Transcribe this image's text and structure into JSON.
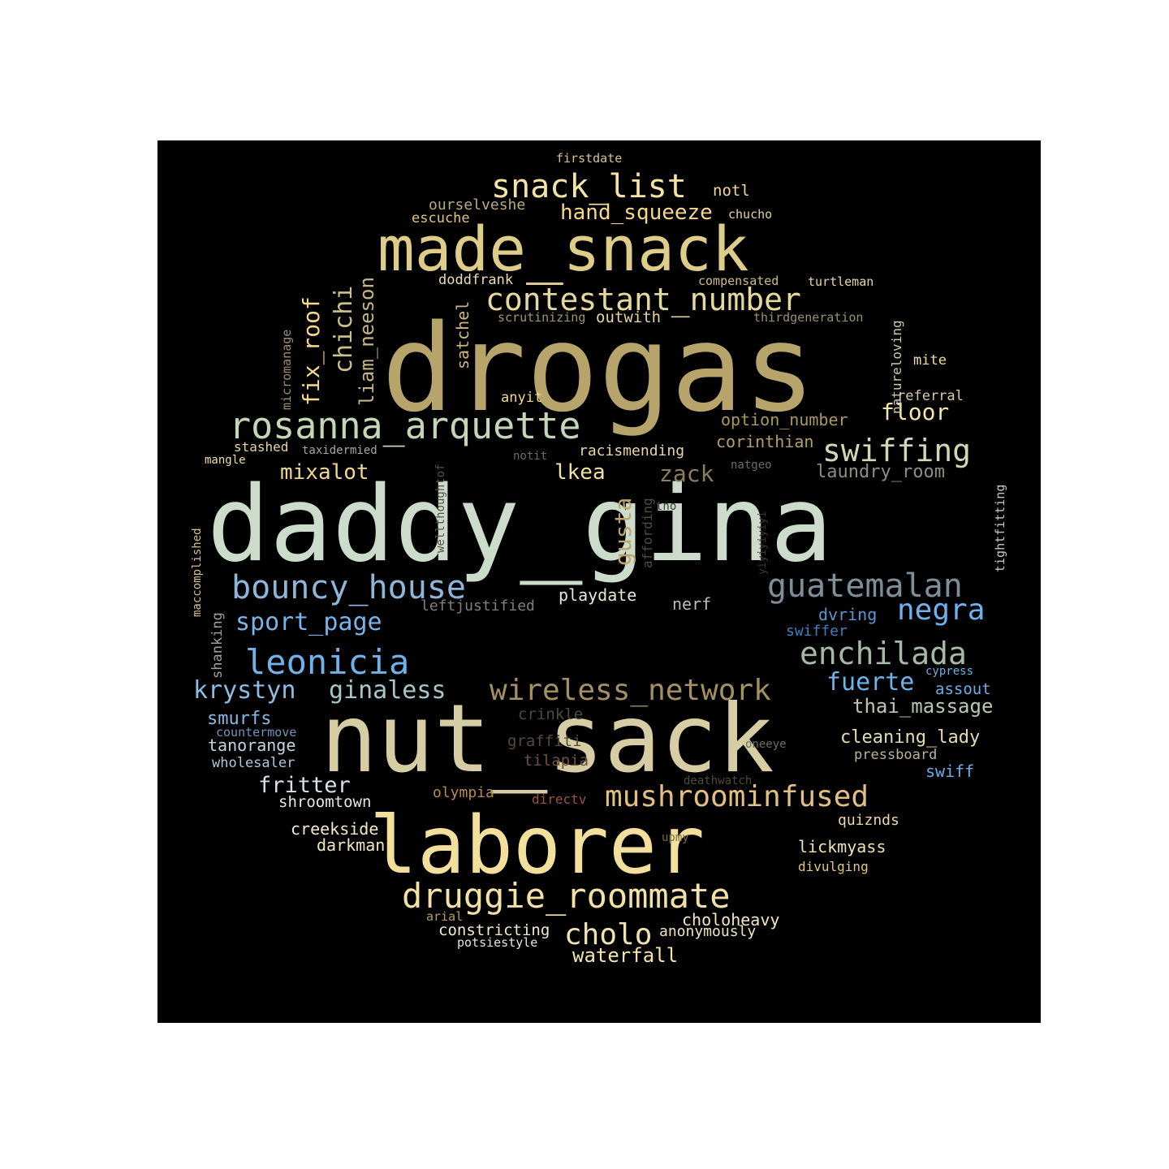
{
  "words": [
    {
      "text": "drogas",
      "color": "#b6a46a"
    },
    {
      "text": "daddy_gina",
      "color": "#ccdccb"
    },
    {
      "text": "nut_sack",
      "color": "#d6cda4"
    },
    {
      "text": "laborer",
      "color": "#f3df9c"
    },
    {
      "text": "made_snack",
      "color": "#ddcd88"
    },
    {
      "text": "rosanna_arquette",
      "color": "#c3d6b6"
    },
    {
      "text": "contestant_number",
      "color": "#e6d99e"
    },
    {
      "text": "snack_list",
      "color": "#f4e3a6"
    },
    {
      "text": "bouncy_house",
      "color": "#8fb6da"
    },
    {
      "text": "guatemalan",
      "color": "#7d8f99"
    },
    {
      "text": "druggie_roommate",
      "color": "#f3e1a6"
    },
    {
      "text": "mushroominfused",
      "color": "#e2bf82"
    },
    {
      "text": "wireless_network",
      "color": "#a59061"
    },
    {
      "text": "swiffing",
      "color": "#d4d6b4"
    },
    {
      "text": "enchilada",
      "color": "#a6b9a6"
    },
    {
      "text": "leonicia",
      "color": "#6fb2e9"
    },
    {
      "text": "negra",
      "color": "#6eb1ec"
    },
    {
      "text": "cholo",
      "color": "#f1e2b6"
    },
    {
      "text": "chichi",
      "color": "#ccc08b"
    },
    {
      "text": "liam_neeson",
      "color": "#c7b584"
    },
    {
      "text": "fix_roof",
      "color": "#f6d98a"
    },
    {
      "text": "hand_squeeze",
      "color": "#f5d88b"
    },
    {
      "text": "sport_page",
      "color": "#77b4ea"
    },
    {
      "text": "krystyn",
      "color": "#8cbde0"
    },
    {
      "text": "ginaless",
      "color": "#a6c6c8"
    },
    {
      "text": "fuerte",
      "color": "#6fb3ea"
    },
    {
      "text": "thai_massage",
      "color": "#b8c8b4"
    },
    {
      "text": "mixalot",
      "color": "#f0d88e"
    },
    {
      "text": "lkea",
      "color": "#f1e0a6"
    },
    {
      "text": "zack",
      "color": "#8d7e5b"
    },
    {
      "text": "gusta",
      "color": "#bfa46b"
    },
    {
      "text": "floor",
      "color": "#f3e4b2"
    },
    {
      "text": "fritter",
      "color": "#d6e0e8"
    },
    {
      "text": "waterfall",
      "color": "#f3e4ae"
    },
    {
      "text": "cleaning_lady",
      "color": "#e3ddb2"
    },
    {
      "text": "laundry_room",
      "color": "#8a8f82"
    },
    {
      "text": "satchel",
      "color": "#cab680"
    },
    {
      "text": "smurfs",
      "color": "#89b6e4"
    },
    {
      "text": "tanorange",
      "color": "#c4d5e2"
    },
    {
      "text": "creekside",
      "color": "#f3eac8"
    },
    {
      "text": "darkman",
      "color": "#f3e6bb"
    },
    {
      "text": "shroomtown",
      "color": "#e6e6e6"
    },
    {
      "text": "option_number",
      "color": "#a9985e"
    },
    {
      "text": "corinthian",
      "color": "#b29f70"
    },
    {
      "text": "outwith",
      "color": "#e8d5a0"
    },
    {
      "text": "playdate",
      "color": "#e9e6d2"
    },
    {
      "text": "nerf",
      "color": "#bcbcbc"
    },
    {
      "text": "dvring",
      "color": "#5b96d0"
    },
    {
      "text": "swiffer",
      "color": "#3f7fc0"
    },
    {
      "text": "swiff",
      "color": "#6aaee7"
    },
    {
      "text": "assout",
      "color": "#6aaee7"
    },
    {
      "text": "lickmyass",
      "color": "#f0e1b0"
    },
    {
      "text": "choloheavy",
      "color": "#f3e7c2"
    },
    {
      "text": "anonymously",
      "color": "#efe5c3"
    },
    {
      "text": "constricting",
      "color": "#f1ebcf"
    },
    {
      "text": "crinkle",
      "color": "#4f4a3e"
    },
    {
      "text": "graffiti",
      "color": "#574a3b"
    },
    {
      "text": "tilapia",
      "color": "#6e4f3f"
    },
    {
      "text": "olympia",
      "color": "#b58b52"
    },
    {
      "text": "directv",
      "color": "#a05040"
    },
    {
      "text": "pressboard",
      "color": "#b9b39e"
    },
    {
      "text": "quiznds",
      "color": "#e9d8a3"
    },
    {
      "text": "divulging",
      "color": "#e0c67f"
    },
    {
      "text": "racismending",
      "color": "#ecd7a3"
    },
    {
      "text": "leftjustified",
      "color": "#7f7f7f"
    },
    {
      "text": "wholesaler",
      "color": "#aec6e0"
    },
    {
      "text": "countermove",
      "color": "#6f95bd"
    },
    {
      "text": "shanking",
      "color": "#a0a0a0"
    },
    {
      "text": "maccomplished",
      "color": "#d6c08c"
    },
    {
      "text": "micromanage",
      "color": "#9e8d6c"
    },
    {
      "text": "stashed",
      "color": "#e8d69e"
    },
    {
      "text": "taxidermied",
      "color": "#a6a6a6"
    },
    {
      "text": "mangle",
      "color": "#f2dfa3"
    },
    {
      "text": "wellthoughtof",
      "color": "#5b5040"
    },
    {
      "text": "affording",
      "color": "#554b3c"
    },
    {
      "text": "tno",
      "color": "#3e3e3e"
    },
    {
      "text": "yiyiyiyiyi",
      "color": "#3a3a35"
    },
    {
      "text": "natgeo",
      "color": "#6c6c6c"
    },
    {
      "text": "notit",
      "color": "#6c6c60"
    },
    {
      "text": "anyit",
      "color": "#f3d98e"
    },
    {
      "text": "referral",
      "color": "#d8cba8"
    },
    {
      "text": "mite",
      "color": "#f3dca3"
    },
    {
      "text": "natureloving",
      "color": "#d1c8a6"
    },
    {
      "text": "tightfitting",
      "color": "#c8c8b8"
    },
    {
      "text": "doddfrank",
      "color": "#f0dcae"
    },
    {
      "text": "compensated",
      "color": "#cdbb86"
    },
    {
      "text": "turtleman",
      "color": "#e8d6a3"
    },
    {
      "text": "scrutinizing",
      "color": "#a39471"
    },
    {
      "text": "thirdgeneration",
      "color": "#9c8e6a"
    },
    {
      "text": "ourselveshe",
      "color": "#b9aa80"
    },
    {
      "text": "escuche",
      "color": "#e0c580"
    },
    {
      "text": "chucho",
      "color": "#e4d3a0"
    },
    {
      "text": "notl",
      "color": "#f1d89a"
    },
    {
      "text": "firstdate",
      "color": "#d9c38a"
    },
    {
      "text": "cypress",
      "color": "#6aaee7"
    },
    {
      "text": "oneeye",
      "color": "#6c6c60"
    },
    {
      "text": "deathwatch",
      "color": "#4d4a44"
    },
    {
      "text": "upmy",
      "color": "#7f6a4a"
    },
    {
      "text": "arial",
      "color": "#b79968"
    },
    {
      "text": "potsiestyle",
      "color": "#e6e6e6"
    }
  ]
}
